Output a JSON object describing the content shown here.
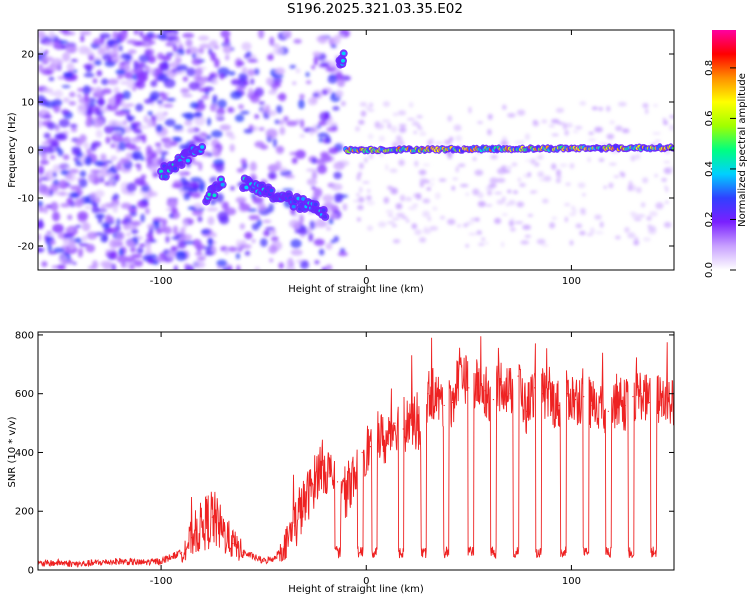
{
  "title": "S196.2025.321.03.35.E02",
  "chart_data": [
    {
      "type": "heatmap",
      "xlabel": "Height of straight line (km)",
      "ylabel": "Frequency (Hz)",
      "xlim": [
        -160,
        150
      ],
      "ylim": [
        -25,
        25
      ],
      "xticks": [
        -100,
        0,
        100
      ],
      "yticks": [
        -20,
        -10,
        0,
        10,
        20
      ],
      "colorbar": {
        "label": "Normalized spectral amplitude",
        "range": [
          0.0,
          0.95
        ],
        "ticks": [
          0.0,
          0.2,
          0.4,
          0.6,
          0.8
        ],
        "colors": [
          "#ffffff",
          "#c8a0ff",
          "#7a20ff",
          "#3040ff",
          "#00d0ff",
          "#00ff80",
          "#a0ff00",
          "#ffff00",
          "#ff9000",
          "#ff0000",
          "#ff00a0"
        ]
      },
      "trace": {
        "segments": [
          {
            "x_start": -100,
            "x_end": -80,
            "freq_start": -5,
            "freq_end": 1
          },
          {
            "x_start": -78,
            "x_end": -70,
            "freq_start": -10,
            "freq_end": -7
          },
          {
            "x_start": -60,
            "x_end": -20,
            "freq_start": -7,
            "freq_end": -13
          },
          {
            "x_start": -13,
            "x_end": -11,
            "freq_start": 19,
            "freq_end": 19
          },
          {
            "x_start": -10,
            "x_end": 150,
            "freq_start": 0,
            "freq_end": 0.5
          }
        ]
      }
    },
    {
      "type": "line",
      "xlabel": "Height of straight line (km)",
      "ylabel": "SNR (10 * v/v)",
      "xlim": [
        -160,
        150
      ],
      "ylim": [
        0,
        810
      ],
      "xticks": [
        -100,
        0,
        100
      ],
      "yticks": [
        0,
        200,
        400,
        600,
        800
      ],
      "color": "#ee2222",
      "series": [
        {
          "name": "SNR",
          "x": [
            -160,
            -150,
            -140,
            -130,
            -120,
            -110,
            -100,
            -90,
            -85,
            -80,
            -75,
            -70,
            -65,
            -60,
            -55,
            -50,
            -45,
            -40,
            -35,
            -30,
            -26,
            -22,
            -18,
            -14,
            -10,
            -6,
            -2,
            2,
            6,
            10,
            14,
            18,
            22,
            26,
            30,
            34,
            38,
            42,
            46,
            50,
            54,
            58,
            62,
            66,
            70,
            74,
            78,
            82,
            86,
            90,
            94,
            98,
            102,
            106,
            110,
            114,
            118,
            122,
            126,
            130,
            134,
            138,
            142,
            146,
            150
          ],
          "y": [
            20,
            25,
            20,
            25,
            30,
            25,
            30,
            60,
            110,
            150,
            180,
            130,
            90,
            60,
            45,
            30,
            40,
            80,
            150,
            230,
            290,
            360,
            330,
            300,
            260,
            330,
            400,
            420,
            460,
            430,
            500,
            480,
            520,
            470,
            600,
            590,
            560,
            570,
            700,
            620,
            630,
            610,
            580,
            640,
            600,
            660,
            540,
            620,
            600,
            580,
            560,
            600,
            580,
            590,
            560,
            570,
            540,
            580,
            560,
            590,
            600,
            570,
            580,
            590,
            560
          ]
        }
      ],
      "dropouts_x": [
        -14,
        -3,
        4,
        17,
        28,
        39,
        51,
        62,
        73,
        84,
        96,
        107,
        118,
        129,
        140
      ]
    }
  ]
}
